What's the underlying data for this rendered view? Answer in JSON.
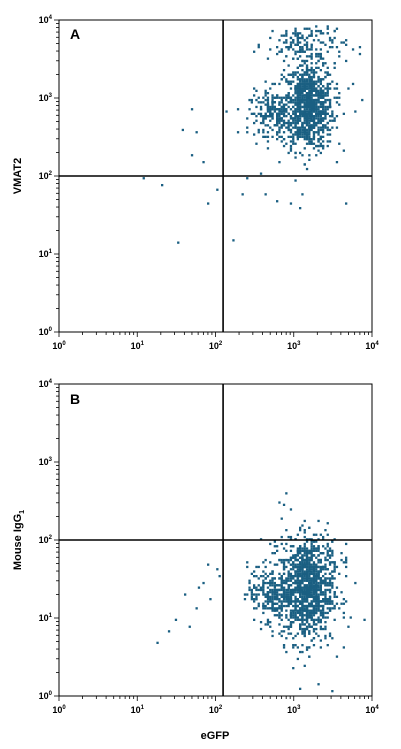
{
  "figure": {
    "x_axis_label": "eGFP",
    "colors": {
      "dots": "#1a5f82",
      "frame": "#000000",
      "background": "#ffffff"
    }
  },
  "chart_data": [
    {
      "type": "scatter",
      "panel_label": "A",
      "ylabel": "VMAT2",
      "xlabel": "",
      "xscale": "log",
      "yscale": "log",
      "xlim": [
        1,
        10000
      ],
      "ylim": [
        1,
        10000
      ],
      "x_tick_labels": [
        "10",
        "10",
        "10",
        "10",
        "10"
      ],
      "x_tick_exponents": [
        "0",
        "1",
        "2",
        "3",
        "4"
      ],
      "y_tick_labels": [
        "10",
        "10",
        "10",
        "10",
        "10"
      ],
      "y_tick_exponents": [
        "0",
        "1",
        "2",
        "3",
        "4"
      ],
      "quadrant_gate": {
        "x": 125,
        "y": 100
      },
      "grid": false,
      "populations": [
        {
          "center": [
            1500,
            800
          ],
          "spread": [
            0.16,
            0.28
          ],
          "count": 900
        },
        {
          "center": [
            550,
            650
          ],
          "spread": [
            0.16,
            0.14
          ],
          "count": 220
        },
        {
          "center": [
            1400,
            5000
          ],
          "spread": [
            0.25,
            0.15
          ],
          "count": 160
        }
      ],
      "sparse_points": [
        [
          12,
          95
        ],
        [
          20,
          80
        ],
        [
          33,
          14
        ],
        [
          37,
          400
        ],
        [
          50,
          750
        ],
        [
          50,
          190
        ],
        [
          55,
          380
        ],
        [
          70,
          160
        ],
        [
          80,
          45
        ],
        [
          100,
          70
        ],
        [
          160,
          16
        ],
        [
          210,
          60
        ],
        [
          250,
          95
        ],
        [
          380,
          110
        ],
        [
          420,
          60
        ],
        [
          600,
          50
        ],
        [
          900,
          45
        ],
        [
          1200,
          40
        ],
        [
          4500,
          45
        ],
        [
          9500,
          55
        ],
        [
          3500,
          900
        ],
        [
          6000,
          700
        ],
        [
          7500,
          1000
        ],
        [
          5500,
          1600
        ]
      ]
    },
    {
      "type": "scatter",
      "panel_label": "B",
      "ylabel": "Mouse IgG",
      "ylabel_subscript": "1",
      "xlabel": "eGFP",
      "xscale": "log",
      "yscale": "log",
      "xlim": [
        1,
        10000
      ],
      "ylim": [
        1,
        10000
      ],
      "x_tick_labels": [
        "10",
        "10",
        "10",
        "10",
        "10"
      ],
      "x_tick_exponents": [
        "0",
        "1",
        "2",
        "3",
        "4"
      ],
      "y_tick_labels": [
        "10",
        "10",
        "10",
        "10",
        "10"
      ],
      "y_tick_exponents": [
        "0",
        "1",
        "2",
        "3",
        "4"
      ],
      "quadrant_gate": {
        "x": 125,
        "y": 100
      },
      "grid": false,
      "populations": [
        {
          "center": [
            1400,
            22
          ],
          "spread": [
            0.17,
            0.32
          ],
          "count": 950
        },
        {
          "center": [
            500,
            22
          ],
          "spread": [
            0.15,
            0.18
          ],
          "count": 240
        },
        {
          "center": [
            1600,
            60
          ],
          "spread": [
            0.18,
            0.2
          ],
          "count": 180
        }
      ],
      "sparse_points": [
        [
          18,
          5
        ],
        [
          25,
          7
        ],
        [
          30,
          10
        ],
        [
          40,
          20
        ],
        [
          45,
          8
        ],
        [
          55,
          14
        ],
        [
          60,
          25
        ],
        [
          70,
          30
        ],
        [
          80,
          50
        ],
        [
          85,
          18
        ],
        [
          100,
          45
        ],
        [
          110,
          35
        ],
        [
          750,
          300
        ],
        [
          800,
          420
        ],
        [
          900,
          250
        ],
        [
          700,
          200
        ],
        [
          1200,
          1.3
        ],
        [
          2000,
          1.5
        ],
        [
          3000,
          1.2
        ],
        [
          5000,
          8
        ],
        [
          6000,
          30
        ],
        [
          8000,
          10
        ],
        [
          4500,
          60
        ]
      ]
    }
  ]
}
